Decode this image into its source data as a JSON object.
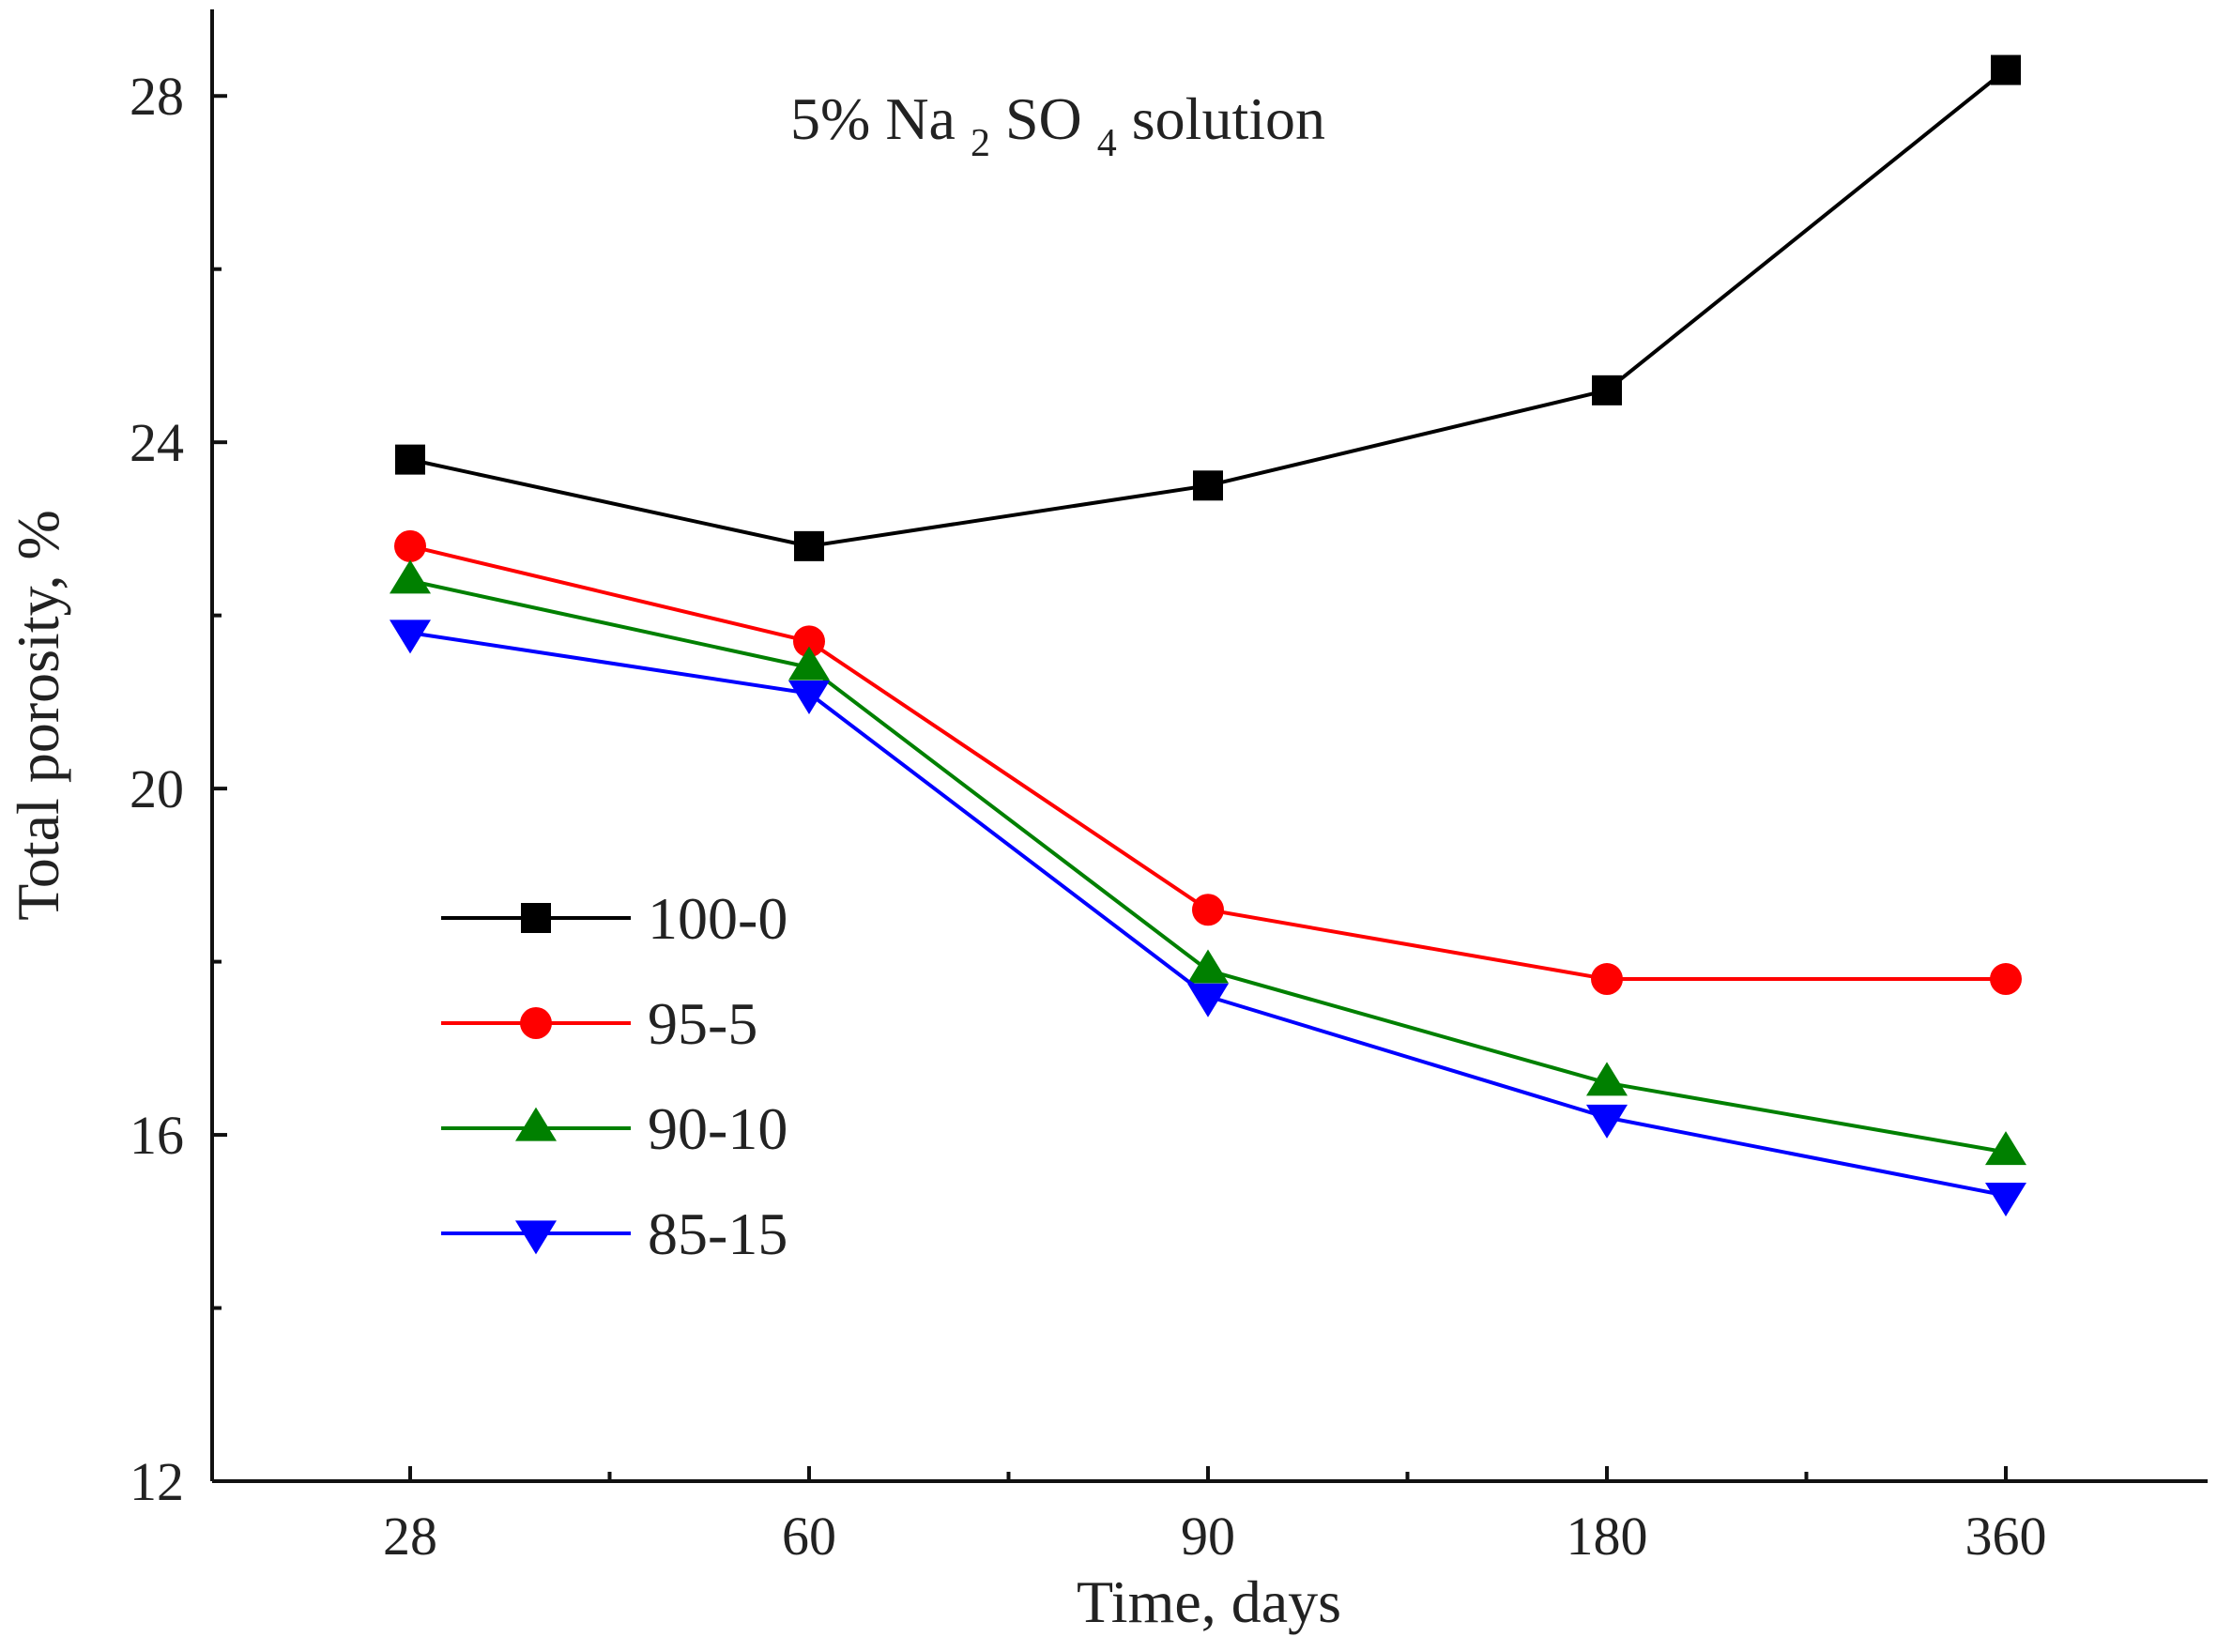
{
  "chart_data": {
    "type": "line",
    "title_parts": {
      "prefix": "5% Na",
      "sub1": "2",
      "middle": "SO",
      "sub2": "4",
      "suffix": " solution"
    },
    "xlabel": "Time, days",
    "ylabel": "Total porosity, %",
    "categories": [
      "28",
      "60",
      "90",
      "180",
      "360"
    ],
    "ylim": [
      12,
      29
    ],
    "y_ticks": [
      12,
      16,
      20,
      24,
      28
    ],
    "y_tick_labels": [
      "12",
      "16",
      "20",
      "24",
      "28"
    ],
    "legend_position": "left-middle",
    "series": [
      {
        "name": "100-0",
        "color": "#000000",
        "marker": "square",
        "values": [
          23.8,
          22.8,
          23.5,
          24.6,
          28.3
        ]
      },
      {
        "name": "95-5",
        "color": "#ff0000",
        "marker": "circle",
        "values": [
          22.8,
          21.7,
          18.6,
          17.8,
          17.8
        ]
      },
      {
        "name": "90-10",
        "color": "#008000",
        "marker": "triangle-up",
        "values": [
          22.4,
          21.4,
          17.9,
          16.6,
          15.8
        ]
      },
      {
        "name": "85-15",
        "color": "#0000ff",
        "marker": "triangle-down",
        "values": [
          21.8,
          21.1,
          17.6,
          16.2,
          15.3
        ]
      }
    ]
  }
}
